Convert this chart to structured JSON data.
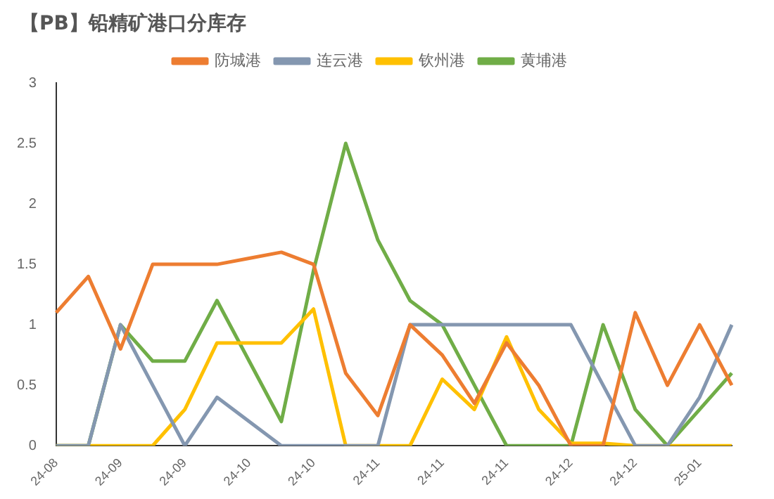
{
  "chart_data": {
    "type": "line",
    "title": "【PB】铅精矿港口分库存",
    "categories": [
      "24-08",
      null,
      "24-09",
      null,
      "24-09",
      null,
      "24-10",
      null,
      "24-10",
      null,
      "24-11",
      null,
      "24-11",
      null,
      "24-11",
      null,
      "24-12",
      null,
      "24-12",
      null,
      "25-01",
      null
    ],
    "series": [
      {
        "name": "防城港",
        "color": "#ed7d31",
        "values": [
          1.1,
          1.4,
          0.8,
          1.5,
          1.5,
          1.5,
          1.55,
          1.6,
          1.5,
          0.6,
          0.25,
          1.0,
          0.75,
          0.35,
          0.85,
          0.5,
          0,
          0,
          1.1,
          0.5,
          1.0,
          0.5
        ]
      },
      {
        "name": "连云港",
        "color": "#8497b0",
        "values": [
          0,
          0,
          1.0,
          0.5,
          0,
          0.4,
          0.2,
          0,
          0,
          0,
          0,
          1.0,
          1.0,
          1.0,
          1.0,
          1.0,
          1.0,
          0.5,
          0,
          0,
          0.4,
          1.0
        ]
      },
      {
        "name": "钦州港",
        "color": "#ffc000",
        "values": [
          0,
          0,
          0,
          0,
          0.3,
          0.85,
          0.85,
          0.85,
          1.13,
          0,
          0,
          0,
          0.55,
          0.3,
          0.9,
          0.3,
          0.02,
          0.02,
          0,
          0,
          0,
          0
        ]
      },
      {
        "name": "黄埔港",
        "color": "#70ad47",
        "values": [
          0,
          0,
          1.0,
          0.7,
          0.7,
          1.2,
          0.7,
          0.2,
          1.45,
          2.5,
          1.7,
          1.2,
          1.0,
          0.5,
          0,
          0,
          0,
          1.0,
          0.3,
          0,
          0.3,
          0.6
        ]
      }
    ],
    "ylim": [
      0,
      3
    ],
    "yticks": [
      0,
      0.5,
      1,
      1.5,
      2,
      2.5,
      3
    ],
    "grid": false,
    "legend": "top",
    "marker": "none",
    "line_style": "solid"
  }
}
